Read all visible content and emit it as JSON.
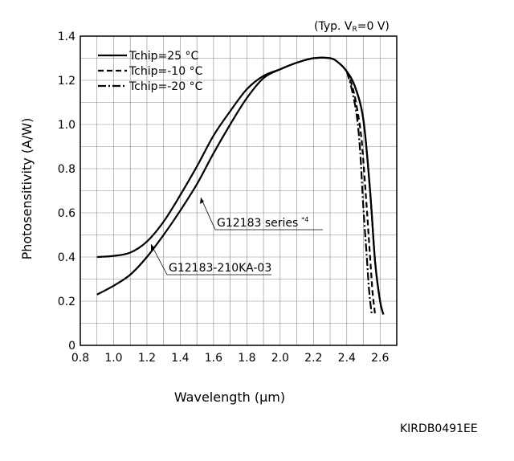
{
  "chart_data": {
    "type": "line",
    "condition_label": "(Typ. V",
    "condition_sub": "R",
    "condition_tail": "=0 V)",
    "xlabel": "Wavelength (µm)",
    "ylabel": "Photosensitivity (A/W)",
    "xlim": [
      0.8,
      2.7
    ],
    "ylim": [
      0,
      1.4
    ],
    "x_ticks": [
      "0.8",
      "1.0",
      "1.2",
      "1.4",
      "1.6",
      "1.8",
      "2.0",
      "2.2",
      "2.4",
      "2.6"
    ],
    "y_ticks": [
      "0",
      "0.2",
      "0.4",
      "0.6",
      "0.8",
      "1.0",
      "1.2",
      "1.4"
    ],
    "grid": true,
    "legend_position": "top-left",
    "legend": [
      {
        "label": "Tchip=25 °C",
        "style": "solid"
      },
      {
        "label": "Tchip=-10 °C",
        "style": "dashed"
      },
      {
        "label": "Tchip=-20 °C",
        "style": "dash-dot"
      }
    ],
    "series": [
      {
        "name": "G12183 series",
        "temp": "25",
        "style": "solid",
        "x": [
          0.9,
          1.0,
          1.1,
          1.2,
          1.3,
          1.4,
          1.5,
          1.6,
          1.7,
          1.8,
          1.9,
          2.0,
          2.1,
          2.2,
          2.3,
          2.35,
          2.4,
          2.45,
          2.5,
          2.54,
          2.57,
          2.6,
          2.62
        ],
        "y": [
          0.4,
          0.405,
          0.42,
          0.47,
          0.56,
          0.68,
          0.81,
          0.95,
          1.06,
          1.16,
          1.22,
          1.25,
          1.28,
          1.3,
          1.3,
          1.28,
          1.24,
          1.17,
          1.02,
          0.7,
          0.38,
          0.2,
          0.14
        ]
      },
      {
        "name": "G12183-210KA-03",
        "temp": "25",
        "style": "solid",
        "x": [
          0.9,
          1.0,
          1.1,
          1.2,
          1.3,
          1.4,
          1.5,
          1.6,
          1.7,
          1.8,
          1.9,
          2.0,
          2.1,
          2.2,
          2.3,
          2.35,
          2.4,
          2.45,
          2.5,
          2.54,
          2.57,
          2.6,
          2.62
        ],
        "y": [
          0.23,
          0.27,
          0.32,
          0.4,
          0.5,
          0.61,
          0.73,
          0.87,
          1.0,
          1.12,
          1.21,
          1.25,
          1.28,
          1.3,
          1.3,
          1.28,
          1.24,
          1.17,
          1.02,
          0.7,
          0.38,
          0.2,
          0.14
        ]
      },
      {
        "name": "Tchip=-10 °C",
        "temp": "-10",
        "style": "dashed",
        "x": [
          2.4,
          2.43,
          2.46,
          2.49,
          2.52,
          2.54,
          2.555,
          2.57
        ],
        "y": [
          1.24,
          1.18,
          1.08,
          0.92,
          0.62,
          0.4,
          0.24,
          0.14
        ]
      },
      {
        "name": "Tchip=-20 °C",
        "temp": "-20",
        "style": "dash-dot",
        "x": [
          2.4,
          2.43,
          2.46,
          2.48,
          2.5,
          2.52,
          2.535,
          2.55
        ],
        "y": [
          1.24,
          1.16,
          1.04,
          0.88,
          0.62,
          0.4,
          0.24,
          0.14
        ]
      }
    ],
    "annotations": [
      {
        "text": "G12183 series",
        "sup": "*4"
      },
      {
        "text": "G12183-210KA-03"
      }
    ]
  },
  "footer": {
    "doc_code": "KIRDB0491EE"
  }
}
